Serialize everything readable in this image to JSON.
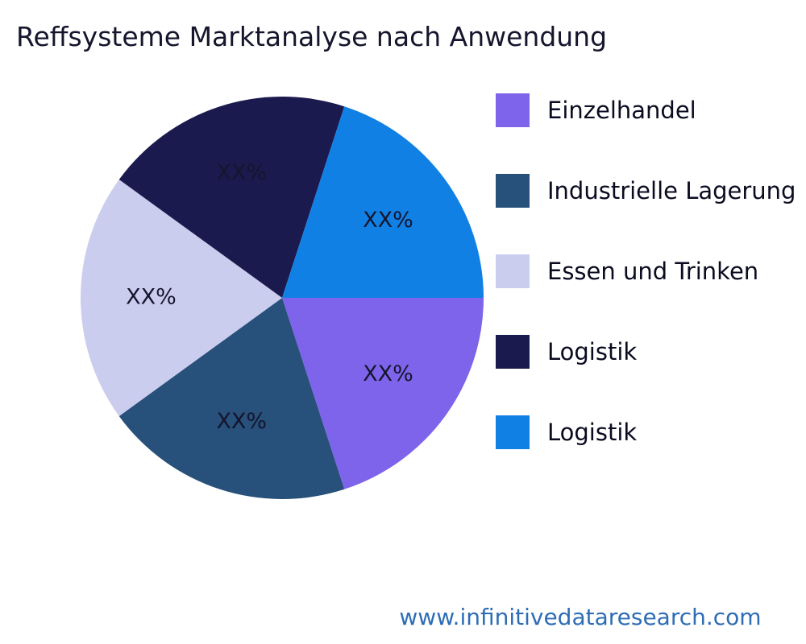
{
  "page": {
    "title": "Reffsysteme Marktanalyse nach Anwendung",
    "footer_url": "www.infinitivedataresearch.com"
  },
  "chart_data": {
    "type": "pie",
    "title": "Reffsysteme Marktanalyse nach Anwendung",
    "legend_position": "right",
    "start_angle_deg": 0,
    "direction": "clockwise",
    "slices": [
      {
        "label": "Einzelhandel",
        "value": 20,
        "display_value": "XX%",
        "color": "#7d64ea"
      },
      {
        "label": "Industrielle Lagerung",
        "value": 20,
        "display_value": "XX%",
        "color": "#27507a"
      },
      {
        "label": "Essen und Trinken",
        "value": 20,
        "display_value": "XX%",
        "color": "#cbcdee"
      },
      {
        "label": "Logistik",
        "value": 20,
        "display_value": "XX%",
        "color": "#1b1a4e"
      },
      {
        "label": "Logistik",
        "value": 20,
        "display_value": "XX%",
        "color": "#1180e4"
      }
    ]
  }
}
